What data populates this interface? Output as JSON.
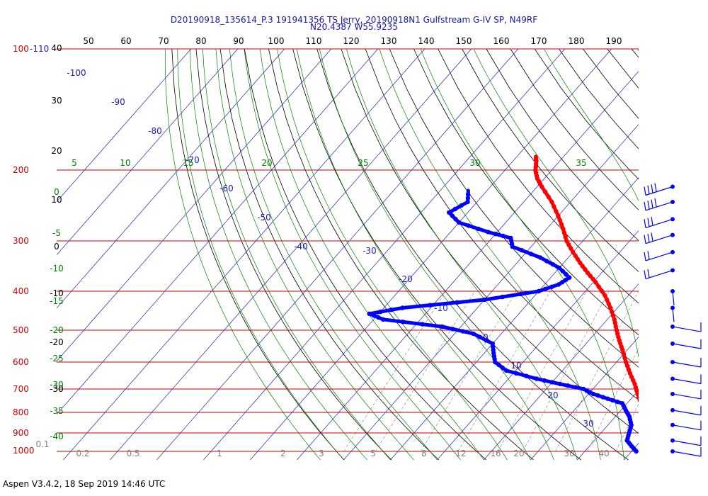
{
  "title_line1": "D20190918_135614_P.3 191941356 TS Jerry, 20190918N1 Gulfstream G-IV SP, N49RF",
  "title_line2": "N20.4387 W55.9235",
  "footer": "Aspen V3.4.2, 18 Sep 2019  14:46 UTC",
  "colors": {
    "temperature": "#ff0000",
    "dewpoint": "#0000ff",
    "isobar": "#cc0000",
    "isotherm": "#2020c0",
    "dry_adiabat": "#000000",
    "mixing_ratio": "#808080",
    "moist_adiabat": "#008000",
    "wind_barb": "#0000ff"
  },
  "chart_data": {
    "type": "skew-t",
    "pressure_axis_label": "100-110",
    "pressure_ticks": [
      "100-110",
      "200",
      "300",
      "400",
      "500",
      "600",
      "700",
      "800",
      "900",
      "1000"
    ],
    "pressure_levels": [
      100,
      200,
      300,
      400,
      500,
      600,
      700,
      800,
      900,
      1000
    ],
    "theta_top_labels": [
      "50",
      "60",
      "70",
      "80",
      "90",
      "100",
      "110",
      "120",
      "130",
      "140",
      "150",
      "160",
      "170",
      "180",
      "190"
    ],
    "left_height_labels": [
      "40",
      "30",
      "20",
      "10",
      "0",
      "-10",
      "-20",
      "-30"
    ],
    "isotherm_labels": [
      "-100",
      "-90",
      "-80",
      "-70",
      "-60",
      "-50",
      "-40",
      "-30",
      "-20",
      "-10",
      "0",
      "10",
      "20",
      "30"
    ],
    "theta_e_labels": [
      "5",
      "10",
      "15",
      "20",
      "25",
      "30",
      "35"
    ],
    "moist_left_labels": [
      "0",
      "-5",
      "-10",
      "-15",
      "-20",
      "-25",
      "-30",
      "-35",
      "-40"
    ],
    "mixing_ratio_labels": [
      "0.1",
      "0.2",
      "0.5",
      "1",
      "2",
      "3",
      "5",
      "8",
      "12",
      "16",
      "20",
      "30",
      "40"
    ],
    "temperature_profile": [
      {
        "p": 1000,
        "t": 26.5
      },
      {
        "p": 980,
        "t": 25
      },
      {
        "p": 950,
        "t": 23
      },
      {
        "p": 920,
        "t": 20.5
      },
      {
        "p": 880,
        "t": 18.5
      },
      {
        "p": 840,
        "t": 16.5
      },
      {
        "p": 800,
        "t": 15
      },
      {
        "p": 760,
        "t": 13
      },
      {
        "p": 720,
        "t": 10.5
      },
      {
        "p": 680,
        "t": 8
      },
      {
        "p": 640,
        "t": 5
      },
      {
        "p": 600,
        "t": 2
      },
      {
        "p": 560,
        "t": -1
      },
      {
        "p": 530,
        "t": -3.5
      },
      {
        "p": 500,
        "t": -6
      },
      {
        "p": 470,
        "t": -8.5
      },
      {
        "p": 440,
        "t": -11.5
      },
      {
        "p": 410,
        "t": -15
      },
      {
        "p": 380,
        "t": -19.5
      },
      {
        "p": 360,
        "t": -23
      },
      {
        "p": 340,
        "t": -26.5
      },
      {
        "p": 320,
        "t": -30
      },
      {
        "p": 300,
        "t": -33.5
      },
      {
        "p": 280,
        "t": -36.5
      },
      {
        "p": 260,
        "t": -40
      },
      {
        "p": 240,
        "t": -44
      },
      {
        "p": 220,
        "t": -49
      },
      {
        "p": 210,
        "t": -51.5
      },
      {
        "p": 200,
        "t": -53.5
      },
      {
        "p": 190,
        "t": -55
      },
      {
        "p": 185,
        "t": -56
      }
    ],
    "dewpoint_profile": [
      {
        "p": 1000,
        "td": 21
      },
      {
        "p": 970,
        "td": 19
      },
      {
        "p": 940,
        "td": 17
      },
      {
        "p": 900,
        "td": 16
      },
      {
        "p": 860,
        "td": 15
      },
      {
        "p": 820,
        "td": 13
      },
      {
        "p": 790,
        "td": 11
      },
      {
        "p": 760,
        "td": 9
      },
      {
        "p": 740,
        "td": 5
      },
      {
        "p": 720,
        "td": 1
      },
      {
        "p": 700,
        "td": -2
      },
      {
        "p": 680,
        "td": -8
      },
      {
        "p": 660,
        "td": -14
      },
      {
        "p": 630,
        "td": -22
      },
      {
        "p": 600,
        "td": -26
      },
      {
        "p": 570,
        "td": -28
      },
      {
        "p": 540,
        "td": -30
      },
      {
        "p": 510,
        "td": -36
      },
      {
        "p": 490,
        "td": -44
      },
      {
        "p": 470,
        "td": -58
      },
      {
        "p": 455,
        "td": -62
      },
      {
        "p": 440,
        "td": -56
      },
      {
        "p": 420,
        "td": -40
      },
      {
        "p": 400,
        "td": -30
      },
      {
        "p": 385,
        "td": -27
      },
      {
        "p": 370,
        "td": -26
      },
      {
        "p": 350,
        "td": -30
      },
      {
        "p": 330,
        "td": -36
      },
      {
        "p": 310,
        "td": -44
      },
      {
        "p": 295,
        "td": -46
      },
      {
        "p": 285,
        "td": -52
      },
      {
        "p": 270,
        "td": -60
      },
      {
        "p": 255,
        "td": -64
      },
      {
        "p": 240,
        "td": -62
      },
      {
        "p": 225,
        "td": -64
      }
    ],
    "wind_barbs": [
      {
        "p": 220,
        "staff": 1,
        "flags": 3
      },
      {
        "p": 240,
        "staff": 1,
        "flags": 3
      },
      {
        "p": 265,
        "staff": 1,
        "flags": 2
      },
      {
        "p": 290,
        "staff": 1,
        "flags": 2
      },
      {
        "p": 320,
        "staff": 1,
        "flags": 1
      },
      {
        "p": 355,
        "staff": 1,
        "flags": 1
      },
      {
        "p": 400,
        "staff": 1,
        "flags": 0
      },
      {
        "p": 440,
        "staff": 1,
        "flags": 0
      },
      {
        "p": 490,
        "staff": 1,
        "flags": 1
      },
      {
        "p": 540,
        "staff": 1,
        "flags": 1
      },
      {
        "p": 600,
        "staff": 1,
        "flags": 1
      },
      {
        "p": 660,
        "staff": 1,
        "flags": 1
      },
      {
        "p": 720,
        "staff": 1,
        "flags": 1
      },
      {
        "p": 790,
        "staff": 1,
        "flags": 1
      },
      {
        "p": 860,
        "staff": 1,
        "flags": 1
      },
      {
        "p": 940,
        "staff": 1,
        "flags": 1
      },
      {
        "p": 1000,
        "staff": 1,
        "flags": 1
      }
    ]
  }
}
